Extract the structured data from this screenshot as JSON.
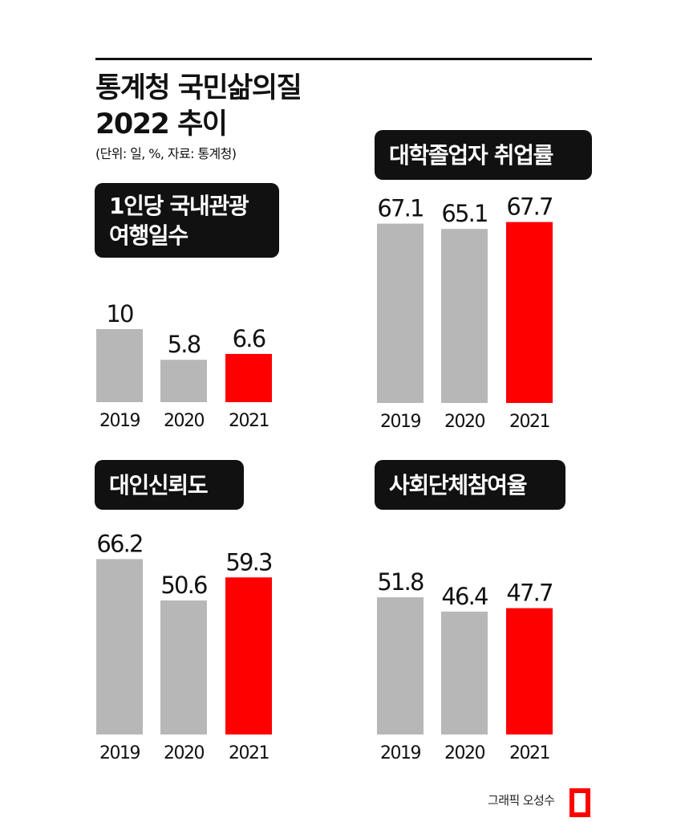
{
  "header": {
    "title_line1": "통계청 국민삶의질",
    "title_line2": "2022 추이",
    "subtitle": "(단위: 일, %, 자료: 통계청)"
  },
  "credit": "그래픽 오성수",
  "colors": {
    "past": "#b7b7b7",
    "current": "#ff0000",
    "text": "#111111",
    "badge": "#111111"
  },
  "chart_data": [
    {
      "type": "bar",
      "title_lines": [
        "1인당 국내관광",
        "여행일수"
      ],
      "categories": [
        "2019",
        "2020",
        "2021"
      ],
      "values": [
        10,
        5.8,
        6.6
      ],
      "value_labels": [
        "10",
        "5.8",
        "6.6"
      ],
      "highlight": "2021"
    },
    {
      "type": "bar",
      "title_lines": [
        "대학졸업자 취업률"
      ],
      "categories": [
        "2019",
        "2020",
        "2021"
      ],
      "values": [
        67.1,
        65.1,
        67.7
      ],
      "value_labels": [
        "67.1",
        "65.1",
        "67.7"
      ],
      "highlight": "2021"
    },
    {
      "type": "bar",
      "title_lines": [
        "대인신뢰도"
      ],
      "categories": [
        "2019",
        "2020",
        "2021"
      ],
      "values": [
        66.2,
        50.6,
        59.3
      ],
      "value_labels": [
        "66.2",
        "50.6",
        "59.3"
      ],
      "highlight": "2021"
    },
    {
      "type": "bar",
      "title_lines": [
        "사회단체참여율"
      ],
      "categories": [
        "2019",
        "2020",
        "2021"
      ],
      "values": [
        51.8,
        46.4,
        47.7
      ],
      "value_labels": [
        "51.8",
        "46.4",
        "47.7"
      ],
      "highlight": "2021"
    }
  ]
}
